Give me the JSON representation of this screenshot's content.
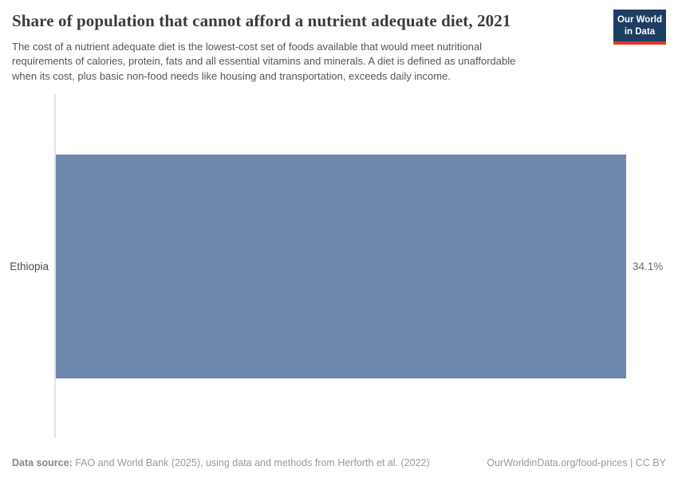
{
  "header": {
    "title": "Share of population that cannot afford a nutrient adequate diet, 2021",
    "logo": {
      "line1": "Our World",
      "line2": "in Data"
    },
    "subtitle_lines": [
      "The cost of a nutrient adequate diet is the lowest-cost set of foods available that would meet nutritional",
      "requirements of calories, protein, fats and all essential vitamins and minerals. A diet is defined as unaffordable",
      "when its cost, plus basic non-food needs like housing and transportation, exceeds daily income."
    ]
  },
  "chart_data": {
    "type": "bar",
    "orientation": "horizontal",
    "title": "Share of population that cannot afford a nutrient adequate diet, 2021",
    "categories": [
      "Ethiopia"
    ],
    "values": [
      34.1
    ],
    "value_labels": [
      "34.1%"
    ],
    "xlabel": "",
    "ylabel": "",
    "xlim": [
      0,
      34.1
    ],
    "grid": false,
    "legend": false,
    "bar_color": "#6d87ad"
  },
  "footer": {
    "datasource_label": "Data source:",
    "datasource_text": " FAO and World Bank (2025), using data and methods from Herforth et al. (2022)",
    "link_text": "OurWorldinData.org/food-prices | CC BY"
  },
  "colors": {
    "bar": "#6d87ad",
    "logo_background": "#1d3d63",
    "logo_stripe": "#e0372e",
    "axis_line": "#e2e2e2"
  }
}
